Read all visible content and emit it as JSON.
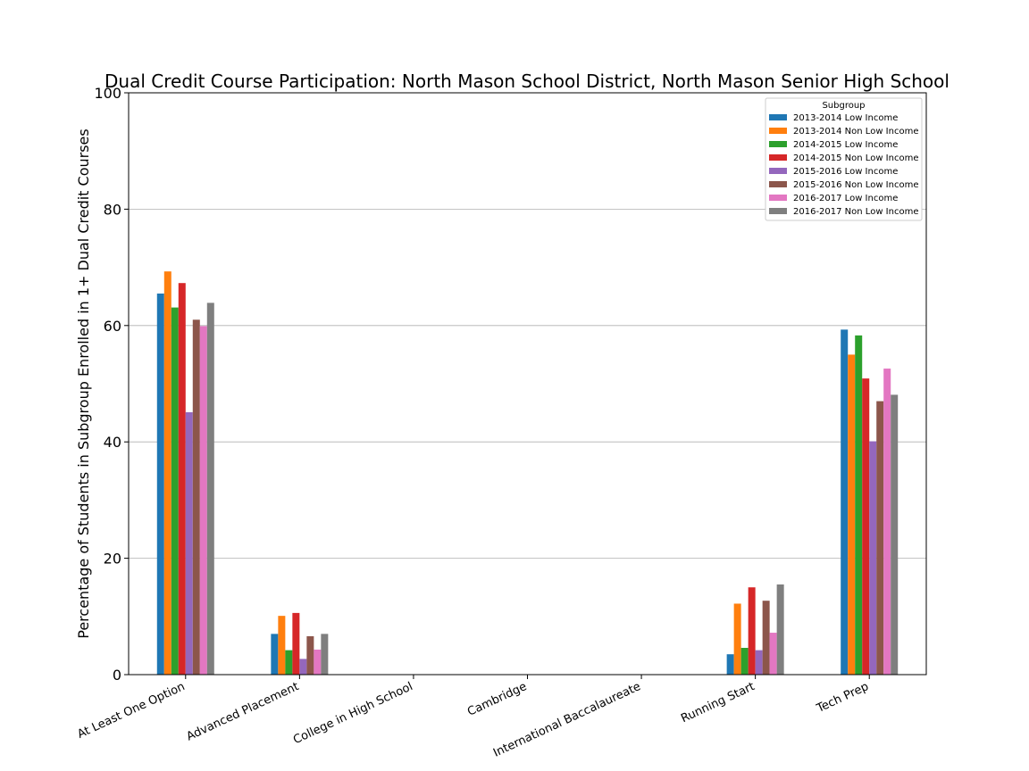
{
  "chart_data": {
    "type": "bar",
    "title": "Dual Credit Course Participation: North Mason School District, North Mason Senior High School",
    "xlabel": "",
    "ylabel": "Percentage of Students in Subgroup Enrolled in 1+ Dual Credit Courses",
    "ylim": [
      0,
      100
    ],
    "yticks": [
      0,
      20,
      40,
      60,
      80,
      100
    ],
    "grid": "horizontal",
    "legend": {
      "title": "Subgroup",
      "placement": "top-right"
    },
    "categories": [
      "At Least One Option",
      "Advanced Placement",
      "College in High School",
      "Cambridge",
      "International Baccalaureate",
      "Running Start",
      "Tech Prep"
    ],
    "series": [
      {
        "name": "2013-2014 Low Income",
        "color": "#1f77b4",
        "values": [
          65.5,
          7.0,
          0,
          0,
          0,
          3.5,
          59.3
        ]
      },
      {
        "name": "2013-2014 Non Low Income",
        "color": "#ff7f0e",
        "values": [
          69.3,
          10.1,
          0,
          0,
          0,
          12.2,
          55.0
        ]
      },
      {
        "name": "2014-2015 Low Income",
        "color": "#2ca02c",
        "values": [
          63.1,
          4.2,
          0,
          0,
          0,
          4.6,
          58.3
        ]
      },
      {
        "name": "2014-2015 Non Low Income",
        "color": "#d62728",
        "values": [
          67.3,
          10.6,
          0,
          0,
          0,
          15.0,
          50.9
        ]
      },
      {
        "name": "2015-2016 Low Income",
        "color": "#9467bd",
        "values": [
          45.1,
          2.7,
          0,
          0,
          0,
          4.2,
          40.1
        ]
      },
      {
        "name": "2015-2016 Non Low Income",
        "color": "#8c564b",
        "values": [
          61.0,
          6.6,
          0,
          0,
          0,
          12.7,
          47.0
        ]
      },
      {
        "name": "2016-2017 Low Income",
        "color": "#e377c2",
        "values": [
          59.9,
          4.3,
          0,
          0,
          0,
          7.2,
          52.6
        ]
      },
      {
        "name": "2016-2017 Non Low Income",
        "color": "#7f7f7f",
        "values": [
          63.9,
          7.0,
          0,
          0,
          0,
          15.5,
          48.1
        ]
      }
    ]
  }
}
